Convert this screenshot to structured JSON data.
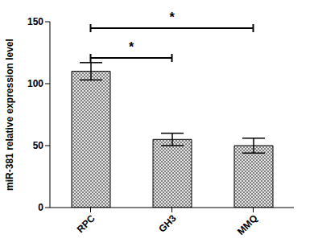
{
  "chart_data": {
    "type": "bar",
    "y_label": "miR-381 relative expression level",
    "categories": [
      "RPC",
      "GH3",
      "MMQ"
    ],
    "values": [
      110,
      55,
      50
    ],
    "errors": [
      7,
      5,
      6
    ],
    "color": "#7f7f7f",
    "ylim": [
      0,
      150
    ],
    "yticks": [
      0,
      50,
      100,
      150
    ],
    "grid": false,
    "annotations": [
      {
        "text": "*",
        "from": "RPC",
        "to": "GH3"
      },
      {
        "text": "*",
        "from": "RPC",
        "to": "MMQ"
      }
    ]
  }
}
